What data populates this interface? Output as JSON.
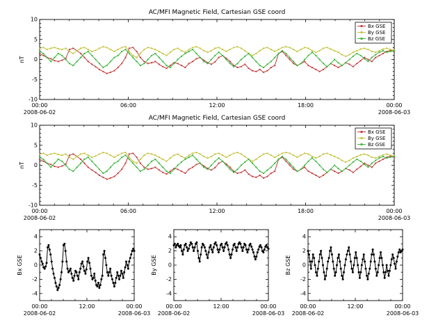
{
  "page": {
    "background": "#ffffff"
  },
  "measurements": {
    "hours_span": [
      0,
      24
    ],
    "n_points": 96,
    "bx": [
      1.5,
      1.0,
      0.5,
      0.2,
      -0.3,
      -0.5,
      -0.2,
      0.3,
      2.5,
      2.8,
      2.2,
      1.5,
      0.5,
      -0.5,
      -1.2,
      -1.8,
      -2.5,
      -3.0,
      -3.5,
      -3.2,
      -2.8,
      -2.0,
      -1.0,
      0.5,
      2.8,
      3.0,
      2.0,
      0.5,
      -0.5,
      -1.0,
      -0.8,
      -0.5,
      -1.2,
      -1.8,
      -2.2,
      -1.5,
      -0.8,
      -1.0,
      -1.5,
      -2.0,
      -1.0,
      -0.5,
      0.2,
      0.5,
      -0.2,
      -0.8,
      -1.2,
      -0.6,
      0.5,
      1.0,
      0.3,
      -0.5,
      -1.5,
      -2.0,
      -1.8,
      -1.2,
      -2.2,
      -2.8,
      -3.0,
      -2.5,
      -3.2,
      -2.8,
      -2.0,
      -1.5,
      1.5,
      2.0,
      1.0,
      0.0,
      -1.0,
      -1.5,
      -1.0,
      -0.5,
      -1.5,
      -2.0,
      -2.5,
      -3.0,
      -2.5,
      -1.8,
      -1.0,
      -1.5,
      -2.0,
      -1.5,
      -0.8,
      -1.2,
      -1.8,
      -1.0,
      -0.3,
      0.5,
      0.0,
      -0.5,
      0.5,
      1.0,
      1.5,
      2.0,
      2.3,
      2.0
    ],
    "by": [
      2.8,
      3.0,
      2.5,
      2.8,
      3.0,
      2.7,
      2.5,
      2.8,
      2.0,
      1.5,
      2.2,
      2.8,
      3.0,
      2.5,
      2.0,
      2.3,
      2.8,
      3.2,
      3.0,
      2.5,
      2.0,
      2.5,
      3.0,
      3.2,
      2.0,
      1.0,
      0.5,
      1.5,
      2.5,
      3.0,
      2.8,
      2.5,
      2.0,
      1.5,
      1.0,
      1.8,
      2.5,
      2.8,
      2.2,
      1.8,
      2.5,
      3.0,
      3.2,
      2.8,
      2.2,
      1.8,
      2.2,
      2.8,
      3.0,
      2.5,
      2.0,
      2.5,
      3.0,
      3.2,
      2.8,
      2.2,
      1.5,
      1.0,
      1.5,
      2.2,
      2.8,
      3.0,
      2.5,
      2.0,
      2.5,
      3.0,
      3.2,
      3.0,
      2.5,
      2.0,
      2.5,
      3.0,
      2.8,
      2.2,
      1.8,
      2.2,
      2.8,
      3.0,
      2.6,
      2.2,
      1.8,
      1.2,
      0.8,
      1.2,
      1.8,
      2.2,
      2.6,
      2.8,
      2.5,
      2.0,
      1.8,
      2.2,
      2.6,
      2.8,
      2.5,
      2.3
    ],
    "bz": [
      2.0,
      1.5,
      0.5,
      -0.5,
      0.5,
      1.5,
      1.0,
      0.0,
      -1.0,
      -1.5,
      -0.5,
      0.5,
      1.5,
      2.0,
      1.0,
      0.0,
      -1.0,
      -2.0,
      -1.5,
      -0.5,
      0.5,
      1.0,
      2.0,
      2.5,
      1.5,
      0.5,
      -0.5,
      -1.5,
      -1.0,
      0.0,
      1.0,
      1.5,
      0.5,
      -0.5,
      -1.5,
      -2.0,
      -1.0,
      0.0,
      0.8,
      1.5,
      2.0,
      2.5,
      1.5,
      0.5,
      -0.5,
      -1.0,
      0.0,
      1.0,
      1.8,
      1.0,
      0.0,
      -1.0,
      -1.8,
      -1.0,
      0.0,
      0.8,
      1.5,
      0.5,
      -0.5,
      -1.5,
      -2.0,
      -1.2,
      -0.5,
      0.5,
      1.5,
      2.2,
      1.5,
      0.5,
      -0.5,
      -1.5,
      -1.0,
      0.0,
      1.0,
      1.8,
      1.0,
      0.0,
      -1.0,
      -1.8,
      -1.0,
      0.0,
      -0.8,
      -1.5,
      -0.8,
      0.0,
      0.8,
      1.5,
      1.0,
      0.2,
      -0.5,
      0.5,
      1.2,
      1.8,
      2.2,
      1.8,
      2.0,
      2.2
    ]
  },
  "chart_data": [
    {
      "id": "panel-top",
      "type": "line",
      "title": "AC/MFI  Magnetic Field, Cartesian GSE coord",
      "ylabel": "nT",
      "ylim": [
        -10,
        10
      ],
      "yticks": [
        -10,
        -5,
        0,
        5,
        10
      ],
      "xlim": [
        0,
        24
      ],
      "xticks": [
        {
          "t": 0,
          "label": "00:00",
          "sub": "2008-06-02"
        },
        {
          "t": 6,
          "label": "06:00"
        },
        {
          "t": 12,
          "label": "12:00"
        },
        {
          "t": 18,
          "label": "18:00"
        },
        {
          "t": 24,
          "label": "00:00",
          "sub": "2008-06-03"
        }
      ],
      "legend": true,
      "series": [
        {
          "name": "Bx GSE",
          "color": "#c23b3b",
          "values_key": "bx"
        },
        {
          "name": "By GSE",
          "color": "#c2c23b",
          "values_key": "by"
        },
        {
          "name": "Bz GSE",
          "color": "#3bb43b",
          "values_key": "bz"
        }
      ]
    },
    {
      "id": "panel-mid",
      "type": "line",
      "title": "AC/MFI  Magnetic Field, Cartesian GSE coord",
      "ylabel": "nT",
      "ylim": [
        -10,
        10
      ],
      "yticks": [
        -10,
        -5,
        0,
        5,
        10
      ],
      "xlim": [
        0,
        24
      ],
      "xticks": [
        {
          "t": 0,
          "label": "00:00",
          "sub": "2008-06-02"
        },
        {
          "t": 6,
          "label": "06:00"
        },
        {
          "t": 12,
          "label": "12:00"
        },
        {
          "t": 18,
          "label": "18:00"
        },
        {
          "t": 24,
          "label": "00:00",
          "sub": "2008-06-03"
        }
      ],
      "legend": true,
      "series": [
        {
          "name": "Bx GSE",
          "color": "#c23b3b",
          "values_key": "bx"
        },
        {
          "name": "By GSE",
          "color": "#c2c23b",
          "values_key": "by"
        },
        {
          "name": "Bz GSE",
          "color": "#3bb43b",
          "values_key": "bz"
        }
      ]
    },
    {
      "id": "panel-bx",
      "type": "line",
      "title": "",
      "ylabel": "Bx GSE",
      "ylim": [
        -5,
        5
      ],
      "yticks": [
        -4,
        -2,
        0,
        2,
        4
      ],
      "xlim": [
        0,
        24
      ],
      "xticks": [
        {
          "t": 0,
          "label": "00:00",
          "sub": "2008-06-02"
        },
        {
          "t": 12,
          "label": "12:00"
        },
        {
          "t": 24,
          "label": "00:00",
          "sub": "2008-06-03"
        }
      ],
      "legend": false,
      "series": [
        {
          "name": "Bx GSE",
          "color": "#000000",
          "values_key": "bx"
        }
      ]
    },
    {
      "id": "panel-by",
      "type": "line",
      "title": "",
      "ylabel": "By GSE",
      "ylim": [
        -5,
        5
      ],
      "yticks": [
        -4,
        -2,
        0,
        2,
        4
      ],
      "xlim": [
        0,
        24
      ],
      "xticks": [
        {
          "t": 0,
          "label": "00:00",
          "sub": "2008-06-02"
        },
        {
          "t": 12,
          "label": "12:00"
        },
        {
          "t": 24,
          "label": "00:00",
          "sub": "2008-06-03"
        }
      ],
      "legend": false,
      "series": [
        {
          "name": "By GSE",
          "color": "#000000",
          "values_key": "by"
        }
      ]
    },
    {
      "id": "panel-bz",
      "type": "line",
      "title": "",
      "ylabel": "Bz GSE",
      "ylim": [
        -5,
        5
      ],
      "yticks": [
        -4,
        -2,
        0,
        2,
        4
      ],
      "xlim": [
        0,
        24
      ],
      "xticks": [
        {
          "t": 0,
          "label": "00:00",
          "sub": "2008-06-02"
        },
        {
          "t": 12,
          "label": "12:00"
        },
        {
          "t": 24,
          "label": "00:00",
          "sub": "2008-06-03"
        }
      ],
      "legend": false,
      "series": [
        {
          "name": "Bz GSE",
          "color": "#000000",
          "values_key": "bz"
        }
      ]
    }
  ]
}
